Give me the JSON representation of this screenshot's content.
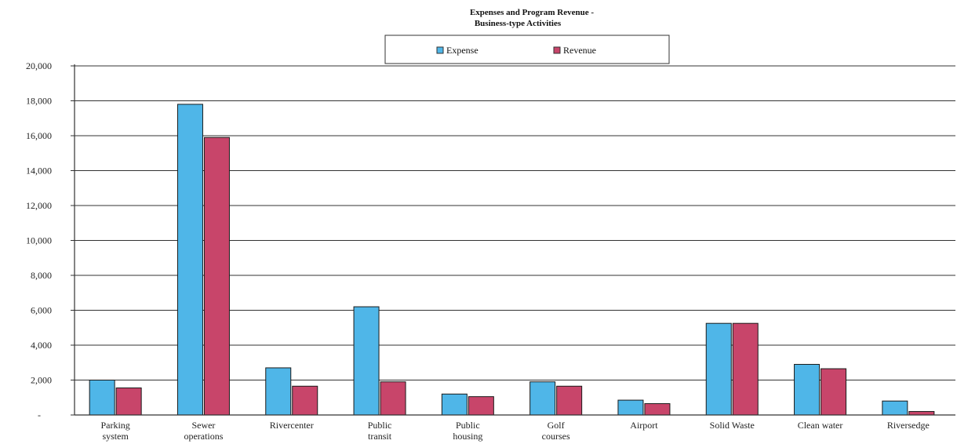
{
  "chart_data": {
    "type": "bar",
    "title": "Expenses and Program Revenue -",
    "subtitle": "Business-type Activities",
    "xlabel": "",
    "ylabel": "",
    "ylim": [
      0,
      20000
    ],
    "yticks": [
      {
        "value": 0,
        "label": "-"
      },
      {
        "value": 2000,
        "label": "2,000"
      },
      {
        "value": 4000,
        "label": "4,000"
      },
      {
        "value": 6000,
        "label": "6,000"
      },
      {
        "value": 8000,
        "label": "8,000"
      },
      {
        "value": 10000,
        "label": "10,000"
      },
      {
        "value": 12000,
        "label": "12,000"
      },
      {
        "value": 14000,
        "label": "14,000"
      },
      {
        "value": 16000,
        "label": "16,000"
      },
      {
        "value": 18000,
        "label": "18,000"
      },
      {
        "value": 20000,
        "label": "20,000"
      }
    ],
    "categories": [
      [
        "Parking",
        "system"
      ],
      [
        "Sewer",
        "operations"
      ],
      [
        "Rivercenter"
      ],
      [
        "Public",
        "transit"
      ],
      [
        "Public",
        "housing"
      ],
      [
        "Golf",
        "courses"
      ],
      [
        "Airport"
      ],
      [
        "Solid Waste"
      ],
      [
        "Clean water"
      ],
      [
        "Riversedge"
      ]
    ],
    "series": [
      {
        "name": "Expense",
        "color": "#4fb6e8",
        "values": [
          2000,
          17800,
          2700,
          6200,
          1200,
          1900,
          850,
          5250,
          2900,
          800
        ]
      },
      {
        "name": "Revenue",
        "color": "#c8456a",
        "values": [
          1550,
          15900,
          1650,
          1900,
          1050,
          1650,
          650,
          5250,
          2650,
          200
        ]
      }
    ],
    "grid": true,
    "legend_position": "top-center"
  }
}
